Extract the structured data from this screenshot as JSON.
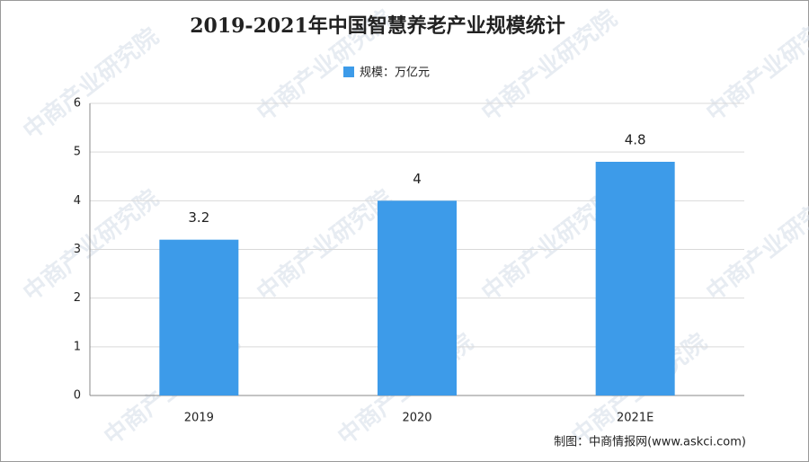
{
  "chart_data": {
    "type": "bar",
    "title": "2019-2021年中国智慧养老产业规模统计",
    "legend_label": "规模：万亿元",
    "categories": [
      "2019",
      "2020",
      "2021E"
    ],
    "values": [
      3.2,
      4,
      4.8
    ],
    "color": "#3d9be9",
    "ylim": [
      0,
      6
    ],
    "yticks": [
      0,
      1,
      2,
      3,
      4,
      5,
      6
    ],
    "grid": true,
    "source": "制图：中商情报网(www.askci.com)",
    "watermark": "中商产业研究院"
  }
}
